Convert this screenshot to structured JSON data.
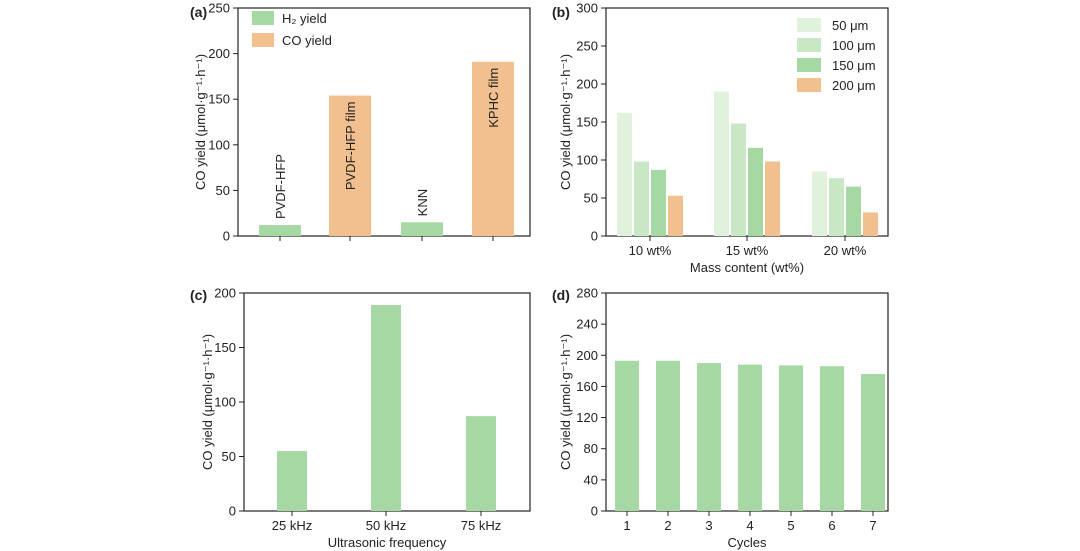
{
  "colors": {
    "green": "#a6d8a3",
    "orange": "#f1c08e",
    "g50": "#e0f1dc",
    "g100": "#c8e7c4",
    "g150": "#a6d8a3",
    "o200": "#f1c08e"
  },
  "chart_data": [
    {
      "id": "a",
      "panel": "(a)",
      "type": "bar",
      "ylabel": "CO yield (μmol·g⁻¹·h⁻¹)",
      "xlabel": "",
      "ylim": [
        0,
        250
      ],
      "yticks": [
        0,
        50,
        100,
        150,
        200,
        250
      ],
      "legend": [
        {
          "label": "H₂ yield",
          "color": "green"
        },
        {
          "label": "CO yield",
          "color": "orange"
        }
      ],
      "bars": [
        {
          "label": "PVDF-HFP",
          "value": 12,
          "series": "H₂ yield",
          "color": "green"
        },
        {
          "label": "PVDF-HFP film",
          "value": 154,
          "series": "CO yield",
          "color": "orange"
        },
        {
          "label": "KNN",
          "value": 15,
          "series": "H₂ yield",
          "color": "green"
        },
        {
          "label": "KPHC film",
          "value": 191,
          "series": "CO yield",
          "color": "orange"
        }
      ]
    },
    {
      "id": "b",
      "panel": "(b)",
      "type": "bar",
      "ylabel": "CO yield (μmol·g⁻¹·h⁻¹)",
      "xlabel": "Mass content (wt%)",
      "ylim": [
        0,
        300
      ],
      "yticks": [
        0,
        50,
        100,
        150,
        200,
        250,
        300
      ],
      "categories": [
        "10 wt%",
        "15 wt%",
        "20 wt%"
      ],
      "series": [
        {
          "name": "50 μm",
          "color": "g50",
          "values": [
            162,
            190,
            85
          ]
        },
        {
          "name": "100 μm",
          "color": "g100",
          "values": [
            98,
            148,
            76
          ]
        },
        {
          "name": "150 μm",
          "color": "g150",
          "values": [
            87,
            116,
            65
          ]
        },
        {
          "name": "200 μm",
          "color": "o200",
          "values": [
            53,
            98,
            31
          ]
        }
      ]
    },
    {
      "id": "c",
      "panel": "(c)",
      "type": "bar",
      "ylabel": "CO yield (μmol·g⁻¹·h⁻¹)",
      "xlabel": "Ultrasonic frequency",
      "ylim": [
        0,
        200
      ],
      "yticks": [
        0,
        50,
        100,
        150,
        200
      ],
      "categories": [
        "25 kHz",
        "50 kHz",
        "75 kHz"
      ],
      "values": [
        55,
        189,
        87
      ],
      "color": "green"
    },
    {
      "id": "d",
      "panel": "(d)",
      "type": "bar",
      "ylabel": "CO yield (μmol·g⁻¹·h⁻¹)",
      "xlabel": "Cycles",
      "ylim": [
        0,
        280
      ],
      "yticks": [
        0,
        40,
        80,
        120,
        160,
        200,
        240,
        280
      ],
      "categories": [
        "1",
        "2",
        "3",
        "4",
        "5",
        "6",
        "7"
      ],
      "values": [
        193,
        193,
        190,
        188,
        187,
        186,
        176
      ],
      "color": "green"
    }
  ]
}
